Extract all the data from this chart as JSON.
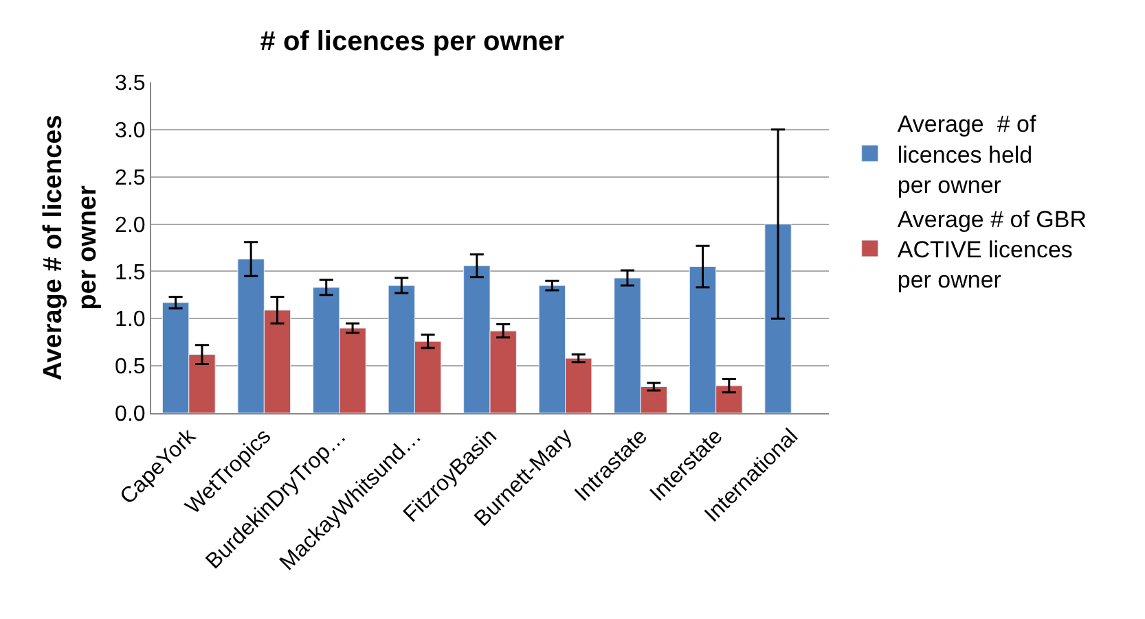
{
  "chart_data": {
    "type": "bar",
    "title": "# of licences per owner",
    "ylabel": "Average # of licences per owner",
    "categories": [
      "CapeYork",
      "WetTropics",
      "BurdekinDryTrop…",
      "MackayWhitsund…",
      "FitzroyBasin",
      "Burnett-Mary",
      "Intrastate",
      "Interstate",
      "International"
    ],
    "series": [
      {
        "name": "Average  # of licences held per owner",
        "color": "#4f81bd",
        "values": [
          1.17,
          1.63,
          1.33,
          1.35,
          1.56,
          1.35,
          1.43,
          1.55,
          2.0
        ],
        "errors": [
          0.06,
          0.18,
          0.08,
          0.08,
          0.12,
          0.05,
          0.08,
          0.22,
          1.0
        ]
      },
      {
        "name": "Average # of GBR ACTIVE licences per owner",
        "color": "#c0504d",
        "values": [
          0.62,
          1.09,
          0.9,
          0.76,
          0.87,
          0.58,
          0.28,
          0.29,
          null
        ],
        "errors": [
          0.1,
          0.14,
          0.05,
          0.07,
          0.07,
          0.04,
          0.04,
          0.07,
          null
        ]
      }
    ],
    "ylim": [
      0,
      3.5
    ],
    "yticks": [
      {
        "value": 0,
        "label": "0.0"
      },
      {
        "value": 0.5,
        "label": "0.5"
      },
      {
        "value": 1,
        "label": "1.0"
      },
      {
        "value": 1.5,
        "label": "1.5"
      },
      {
        "value": 2,
        "label": "2.0"
      },
      {
        "value": 2.5,
        "label": "2.5"
      },
      {
        "value": 3,
        "label": "3.0"
      },
      {
        "value": 3.5,
        "label": "3.5"
      }
    ],
    "grid": "y",
    "legend": "right"
  }
}
